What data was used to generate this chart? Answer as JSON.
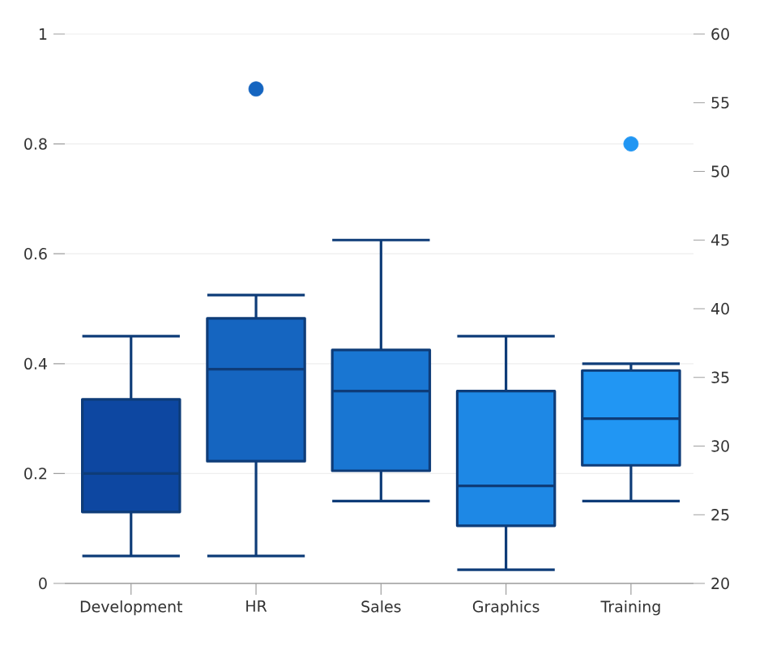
{
  "chart_data": {
    "type": "box",
    "categories": [
      "Development",
      "HR",
      "Sales",
      "Graphics",
      "Training"
    ],
    "ylim": [
      0,
      1
    ],
    "yticks": [
      0,
      0.2,
      0.4,
      0.6,
      0.8,
      1
    ],
    "y2lim": [
      20,
      60
    ],
    "y2ticks": [
      20,
      25,
      30,
      35,
      40,
      45,
      50,
      55,
      60
    ],
    "grid": "y",
    "series": [
      {
        "axis": "y2",
        "colors": [
          "#0d47a1",
          "#1565c0",
          "#1976d2",
          "#1e88e5",
          "#2196f3"
        ],
        "boxes": [
          {
            "low": 22,
            "q1": 25.2,
            "median": 28,
            "q3": 33.4,
            "high": 38
          },
          {
            "low": 22,
            "q1": 28.9,
            "median": 35.6,
            "q3": 39.3,
            "high": 41,
            "outliers": [
              56
            ]
          },
          {
            "low": 26,
            "q1": 28.2,
            "median": 34,
            "q3": 37,
            "high": 45
          },
          {
            "low": 21,
            "q1": 24.2,
            "median": 27.1,
            "q3": 34,
            "high": 38
          },
          {
            "low": 26,
            "q1": 28.6,
            "median": 32,
            "q3": 35.5,
            "high": 36,
            "outliers": [
              52
            ]
          }
        ]
      }
    ]
  }
}
